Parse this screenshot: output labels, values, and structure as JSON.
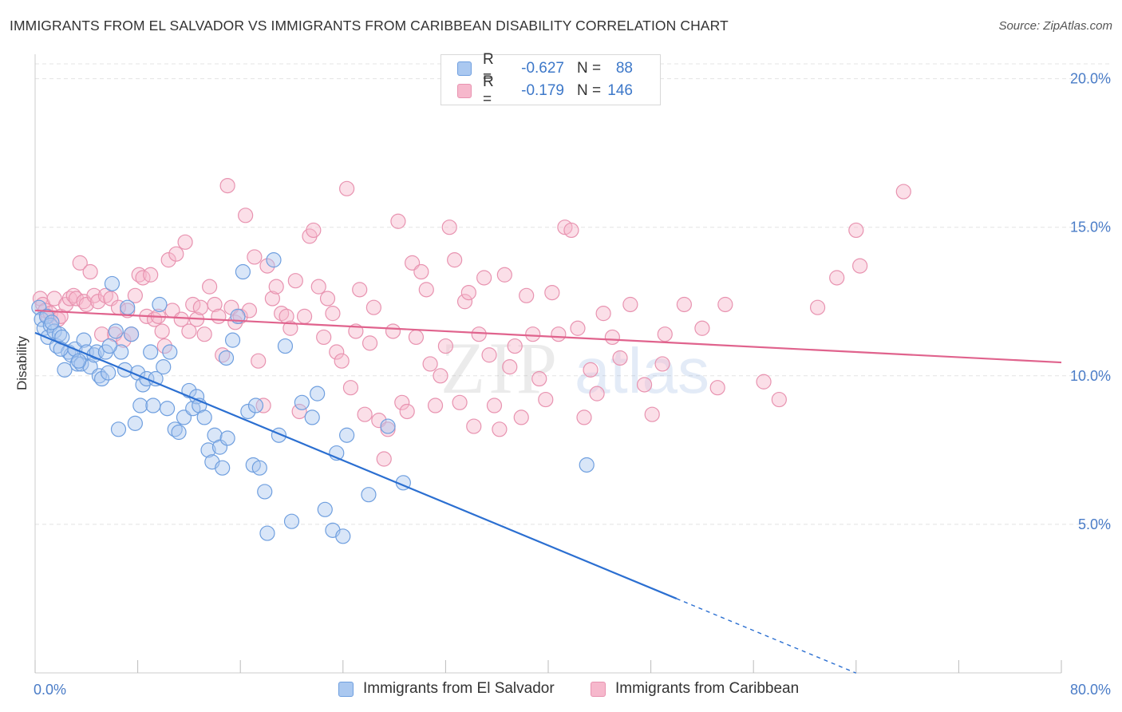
{
  "title": "IMMIGRANTS FROM EL SALVADOR VS IMMIGRANTS FROM CARIBBEAN DISABILITY CORRELATION CHART",
  "source": "Source: ZipAtlas.com",
  "watermark": {
    "zip": "ZIP",
    "atlas": "atlas"
  },
  "colors": {
    "blue_fill": "#aac8f0",
    "blue_stroke": "#6f9fdf",
    "blue_line": "#2b6fd1",
    "pink_fill": "#f6b8cc",
    "pink_stroke": "#e893b0",
    "pink_line": "#e0638d",
    "tick_text": "#4a7cc7",
    "grid": "#e4e4e4"
  },
  "legend": {
    "rows": [
      {
        "r_label": "R =",
        "r_value": "-0.627",
        "n_label": "N =",
        "n_value": "88"
      },
      {
        "r_label": "R =",
        "r_value": "-0.179",
        "n_label": "N =",
        "n_value": "146"
      }
    ]
  },
  "bottom_legend": [
    "Immigrants from El Salvador",
    "Immigrants from Caribbean"
  ],
  "chart_data": {
    "type": "scatter",
    "title": "IMMIGRANTS FROM EL SALVADOR VS IMMIGRANTS FROM CARIBBEAN DISABILITY CORRELATION CHART",
    "xlabel": "",
    "ylabel": "Disability",
    "xlim": [
      0,
      80
    ],
    "ylim": [
      0,
      20.5
    ],
    "x_tick_labels": [
      "0.0%",
      "80.0%"
    ],
    "y_ticks": [
      5,
      10,
      15,
      20
    ],
    "y_tick_labels": [
      "5.0%",
      "10.0%",
      "15.0%",
      "20.0%"
    ],
    "grid": true,
    "legend_position": "top-center",
    "series": [
      {
        "name": "Immigrants from El Salvador",
        "r": -0.627,
        "n": 88,
        "trend": {
          "x0": 0,
          "y0": 11.45,
          "x1": 50,
          "y1": 2.5,
          "dashed_to_x": 64
        },
        "points": [
          [
            0.3,
            12.3
          ],
          [
            0.5,
            11.9
          ],
          [
            0.7,
            11.6
          ],
          [
            0.9,
            12.0
          ],
          [
            1.0,
            11.3
          ],
          [
            1.2,
            11.7
          ],
          [
            1.5,
            11.5
          ],
          [
            1.7,
            11.0
          ],
          [
            1.9,
            11.4
          ],
          [
            2.1,
            11.3
          ],
          [
            2.3,
            10.2
          ],
          [
            2.6,
            10.8
          ],
          [
            2.8,
            10.7
          ],
          [
            3.1,
            10.9
          ],
          [
            3.3,
            10.4
          ],
          [
            3.6,
            10.4
          ],
          [
            3.8,
            11.2
          ],
          [
            4.0,
            10.8
          ],
          [
            4.3,
            10.3
          ],
          [
            4.6,
            10.7
          ],
          [
            4.8,
            10.8
          ],
          [
            5.0,
            10.0
          ],
          [
            5.2,
            9.9
          ],
          [
            5.5,
            10.8
          ],
          [
            5.7,
            10.1
          ],
          [
            6.0,
            13.1
          ],
          [
            6.3,
            11.5
          ],
          [
            6.5,
            8.2
          ],
          [
            6.7,
            10.8
          ],
          [
            7.0,
            10.2
          ],
          [
            7.2,
            12.3
          ],
          [
            7.5,
            11.4
          ],
          [
            7.8,
            8.4
          ],
          [
            8.0,
            10.1
          ],
          [
            8.2,
            9.0
          ],
          [
            8.4,
            9.7
          ],
          [
            8.7,
            9.9
          ],
          [
            9.0,
            10.8
          ],
          [
            9.2,
            9.0
          ],
          [
            9.4,
            9.9
          ],
          [
            9.7,
            12.4
          ],
          [
            10.0,
            10.3
          ],
          [
            10.3,
            8.9
          ],
          [
            10.5,
            10.8
          ],
          [
            10.9,
            8.2
          ],
          [
            11.2,
            8.1
          ],
          [
            11.6,
            8.6
          ],
          [
            12.0,
            9.5
          ],
          [
            12.3,
            8.9
          ],
          [
            12.6,
            9.3
          ],
          [
            12.8,
            9.0
          ],
          [
            13.2,
            8.6
          ],
          [
            13.5,
            7.5
          ],
          [
            13.8,
            7.1
          ],
          [
            14.0,
            8.0
          ],
          [
            14.4,
            7.6
          ],
          [
            14.6,
            6.9
          ],
          [
            15.0,
            7.9
          ],
          [
            15.4,
            11.2
          ],
          [
            15.8,
            12.0
          ],
          [
            16.2,
            13.5
          ],
          [
            16.6,
            8.8
          ],
          [
            17.0,
            7.0
          ],
          [
            17.2,
            9.0
          ],
          [
            17.5,
            6.9
          ],
          [
            17.9,
            6.1
          ],
          [
            18.1,
            4.7
          ],
          [
            19.0,
            8.0
          ],
          [
            19.5,
            11.0
          ],
          [
            20.0,
            5.1
          ],
          [
            20.8,
            9.1
          ],
          [
            21.6,
            8.6
          ],
          [
            22.0,
            9.4
          ],
          [
            22.6,
            5.5
          ],
          [
            23.2,
            4.8
          ],
          [
            23.5,
            7.4
          ],
          [
            24.0,
            4.6
          ],
          [
            24.3,
            8.0
          ],
          [
            26.0,
            6.0
          ],
          [
            27.5,
            8.3
          ],
          [
            28.7,
            6.4
          ],
          [
            43.0,
            7.0
          ],
          [
            5.8,
            11.0
          ],
          [
            3.4,
            10.5
          ],
          [
            2.0,
            10.9
          ],
          [
            1.3,
            11.8
          ],
          [
            14.9,
            10.6
          ],
          [
            18.6,
            13.9
          ]
        ]
      },
      {
        "name": "Immigrants from Caribbean",
        "r": -0.179,
        "n": 146,
        "trend": {
          "x0": 0,
          "y0": 12.2,
          "x1": 80,
          "y1": 10.45
        },
        "points": [
          [
            0.4,
            12.6
          ],
          [
            0.6,
            12.4
          ],
          [
            0.8,
            12.2
          ],
          [
            1.0,
            12.0
          ],
          [
            1.2,
            12.1
          ],
          [
            1.5,
            12.6
          ],
          [
            1.8,
            11.9
          ],
          [
            2.0,
            12.0
          ],
          [
            2.4,
            12.4
          ],
          [
            2.7,
            12.6
          ],
          [
            3.0,
            12.7
          ],
          [
            3.2,
            12.6
          ],
          [
            3.5,
            13.8
          ],
          [
            3.8,
            12.5
          ],
          [
            4.0,
            12.4
          ],
          [
            4.3,
            13.5
          ],
          [
            4.6,
            12.7
          ],
          [
            4.9,
            12.5
          ],
          [
            5.2,
            11.4
          ],
          [
            5.5,
            12.7
          ],
          [
            5.9,
            12.6
          ],
          [
            6.2,
            11.4
          ],
          [
            6.5,
            12.3
          ],
          [
            6.9,
            11.2
          ],
          [
            7.2,
            12.2
          ],
          [
            7.5,
            11.4
          ],
          [
            7.8,
            12.7
          ],
          [
            8.1,
            13.4
          ],
          [
            8.4,
            13.3
          ],
          [
            8.7,
            12.0
          ],
          [
            9.0,
            13.4
          ],
          [
            9.3,
            11.9
          ],
          [
            9.6,
            12.0
          ],
          [
            9.9,
            11.5
          ],
          [
            10.1,
            11.0
          ],
          [
            10.4,
            13.9
          ],
          [
            10.7,
            12.2
          ],
          [
            11.0,
            14.1
          ],
          [
            11.4,
            11.9
          ],
          [
            11.7,
            14.5
          ],
          [
            12.0,
            11.5
          ],
          [
            12.3,
            12.4
          ],
          [
            12.6,
            11.9
          ],
          [
            12.9,
            12.3
          ],
          [
            13.2,
            11.4
          ],
          [
            13.6,
            13.0
          ],
          [
            14.0,
            12.4
          ],
          [
            14.3,
            12.0
          ],
          [
            14.6,
            10.7
          ],
          [
            15.0,
            16.4
          ],
          [
            15.3,
            12.3
          ],
          [
            15.6,
            11.8
          ],
          [
            16.0,
            12.0
          ],
          [
            16.4,
            15.4
          ],
          [
            16.7,
            12.2
          ],
          [
            17.1,
            14.0
          ],
          [
            17.4,
            10.5
          ],
          [
            17.8,
            9.0
          ],
          [
            18.1,
            13.7
          ],
          [
            18.5,
            12.6
          ],
          [
            18.8,
            13.0
          ],
          [
            19.2,
            12.1
          ],
          [
            19.6,
            12.0
          ],
          [
            19.9,
            11.6
          ],
          [
            20.3,
            13.2
          ],
          [
            20.6,
            8.8
          ],
          [
            21.0,
            12.0
          ],
          [
            21.4,
            14.7
          ],
          [
            21.7,
            14.9
          ],
          [
            22.1,
            13.0
          ],
          [
            22.5,
            11.3
          ],
          [
            22.8,
            12.6
          ],
          [
            23.2,
            12.1
          ],
          [
            23.5,
            10.8
          ],
          [
            23.9,
            10.5
          ],
          [
            24.3,
            16.3
          ],
          [
            24.6,
            9.6
          ],
          [
            25.0,
            11.5
          ],
          [
            25.3,
            12.9
          ],
          [
            25.7,
            8.7
          ],
          [
            26.1,
            11.1
          ],
          [
            26.4,
            12.3
          ],
          [
            26.8,
            8.5
          ],
          [
            27.2,
            7.2
          ],
          [
            27.5,
            8.2
          ],
          [
            27.9,
            11.5
          ],
          [
            28.3,
            15.2
          ],
          [
            28.6,
            9.1
          ],
          [
            29.0,
            8.8
          ],
          [
            29.4,
            13.8
          ],
          [
            29.7,
            11.3
          ],
          [
            30.1,
            13.5
          ],
          [
            30.5,
            12.9
          ],
          [
            30.8,
            10.4
          ],
          [
            31.2,
            9.0
          ],
          [
            31.6,
            10.0
          ],
          [
            32.0,
            11.0
          ],
          [
            32.3,
            15.0
          ],
          [
            32.7,
            13.9
          ],
          [
            33.1,
            9.1
          ],
          [
            33.5,
            12.5
          ],
          [
            33.8,
            12.8
          ],
          [
            34.2,
            8.3
          ],
          [
            34.6,
            11.4
          ],
          [
            35.0,
            13.3
          ],
          [
            35.4,
            10.7
          ],
          [
            35.8,
            9.0
          ],
          [
            36.2,
            8.2
          ],
          [
            36.6,
            13.4
          ],
          [
            37.0,
            10.3
          ],
          [
            37.4,
            11.0
          ],
          [
            37.9,
            8.6
          ],
          [
            38.3,
            12.7
          ],
          [
            38.8,
            11.4
          ],
          [
            39.3,
            9.9
          ],
          [
            39.8,
            9.2
          ],
          [
            40.3,
            12.8
          ],
          [
            40.8,
            11.4
          ],
          [
            41.3,
            15.0
          ],
          [
            41.8,
            14.9
          ],
          [
            42.3,
            11.6
          ],
          [
            42.8,
            8.6
          ],
          [
            43.3,
            10.2
          ],
          [
            43.8,
            9.4
          ],
          [
            44.3,
            12.1
          ],
          [
            45.0,
            11.3
          ],
          [
            45.6,
            10.6
          ],
          [
            46.4,
            12.4
          ],
          [
            47.5,
            9.7
          ],
          [
            48.1,
            8.7
          ],
          [
            49.1,
            11.4
          ],
          [
            50.6,
            12.4
          ],
          [
            52.0,
            11.6
          ],
          [
            53.2,
            9.6
          ],
          [
            53.8,
            12.4
          ],
          [
            61.0,
            12.3
          ],
          [
            62.5,
            13.3
          ],
          [
            64.0,
            14.9
          ],
          [
            64.3,
            13.7
          ],
          [
            67.7,
            16.2
          ],
          [
            58.0,
            9.2
          ],
          [
            56.8,
            9.8
          ],
          [
            48.9,
            10.4
          ]
        ]
      }
    ]
  }
}
